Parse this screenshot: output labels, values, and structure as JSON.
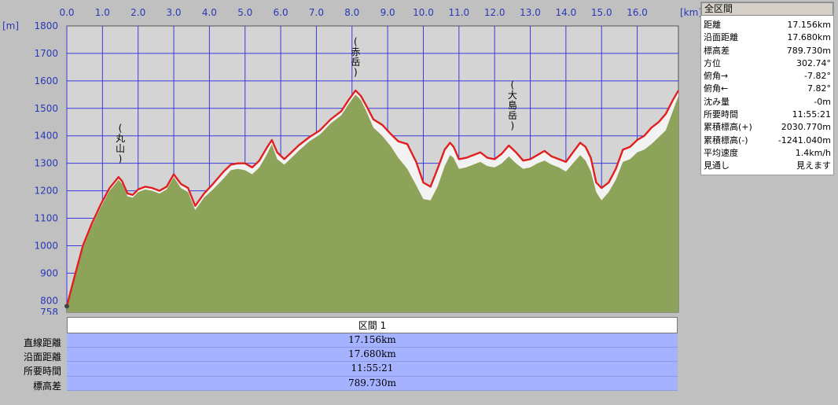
{
  "chart_data": {
    "type": "area",
    "xlabel": "[km]",
    "ylabel": "[m]",
    "xlim": [
      0,
      17.156
    ],
    "ylim": [
      758,
      1800
    ],
    "x_ticks": [
      "0.0",
      "1.0",
      "2.0",
      "3.0",
      "4.0",
      "5.0",
      "6.0",
      "7.0",
      "8.0",
      "9.0",
      "10.0",
      "11.0",
      "12.0",
      "13.0",
      "14.0",
      "15.0",
      "16.0"
    ],
    "y_ticks": [
      "758",
      "800",
      "900",
      "1000",
      "1100",
      "1200",
      "1300",
      "1400",
      "1500",
      "1600",
      "1700",
      "1800"
    ],
    "grid": true,
    "annotations": [
      {
        "label": "(丸山)",
        "x": 1.5,
        "y": 1250
      },
      {
        "label": "(赤岳)",
        "x": 8.1,
        "y": 1565
      },
      {
        "label": "(大島岳)",
        "x": 12.5,
        "y": 1370
      }
    ],
    "series": [
      {
        "name": "",
        "color": "#e02020",
        "x": [
          0,
          0.2,
          0.45,
          0.7,
          0.95,
          1.2,
          1.45,
          1.55,
          1.7,
          1.85,
          2.0,
          2.2,
          2.4,
          2.6,
          2.8,
          3.0,
          3.2,
          3.4,
          3.6,
          3.85,
          4.1,
          4.4,
          4.6,
          4.8,
          5.0,
          5.2,
          5.4,
          5.6,
          5.75,
          5.9,
          6.1,
          6.3,
          6.5,
          6.8,
          7.1,
          7.4,
          7.7,
          7.9,
          8.1,
          8.25,
          8.4,
          8.6,
          8.85,
          9.1,
          9.3,
          9.55,
          9.8,
          10.0,
          10.2,
          10.4,
          10.6,
          10.75,
          10.85,
          11.0,
          11.2,
          11.4,
          11.6,
          11.8,
          12.0,
          12.2,
          12.4,
          12.6,
          12.8,
          13.0,
          13.2,
          13.4,
          13.6,
          13.8,
          14.0,
          14.2,
          14.4,
          14.55,
          14.7,
          14.85,
          15.0,
          15.2,
          15.4,
          15.6,
          15.8,
          16.0,
          16.2,
          16.4,
          16.6,
          16.8,
          17.0,
          17.156
        ],
        "values": [
          780,
          880,
          1000,
          1080,
          1150,
          1210,
          1250,
          1235,
          1190,
          1185,
          1205,
          1215,
          1210,
          1200,
          1215,
          1260,
          1225,
          1210,
          1145,
          1190,
          1225,
          1270,
          1295,
          1300,
          1300,
          1285,
          1310,
          1355,
          1385,
          1340,
          1315,
          1340,
          1365,
          1395,
          1420,
          1460,
          1490,
          1530,
          1565,
          1545,
          1510,
          1460,
          1440,
          1405,
          1380,
          1370,
          1305,
          1230,
          1215,
          1280,
          1350,
          1375,
          1360,
          1315,
          1320,
          1330,
          1340,
          1320,
          1315,
          1335,
          1365,
          1340,
          1310,
          1315,
          1330,
          1345,
          1325,
          1315,
          1305,
          1340,
          1375,
          1360,
          1320,
          1230,
          1210,
          1230,
          1280,
          1350,
          1360,
          1385,
          1400,
          1430,
          1450,
          1480,
          1530,
          1565
        ]
      },
      {
        "name": "",
        "color": "#8ea35a",
        "x": [
          0,
          0.2,
          0.45,
          0.7,
          0.95,
          1.2,
          1.45,
          1.55,
          1.7,
          1.85,
          2.0,
          2.2,
          2.4,
          2.6,
          2.8,
          3.0,
          3.2,
          3.4,
          3.6,
          3.85,
          4.1,
          4.4,
          4.6,
          4.8,
          5.0,
          5.2,
          5.4,
          5.6,
          5.75,
          5.9,
          6.1,
          6.3,
          6.5,
          6.8,
          7.1,
          7.4,
          7.7,
          7.9,
          8.1,
          8.25,
          8.4,
          8.6,
          8.85,
          9.1,
          9.3,
          9.55,
          9.8,
          10.0,
          10.2,
          10.4,
          10.6,
          10.75,
          10.85,
          11.0,
          11.2,
          11.4,
          11.6,
          11.8,
          12.0,
          12.2,
          12.4,
          12.6,
          12.8,
          13.0,
          13.2,
          13.4,
          13.6,
          13.8,
          14.0,
          14.2,
          14.4,
          14.55,
          14.7,
          14.85,
          15.0,
          15.2,
          15.4,
          15.6,
          15.8,
          16.0,
          16.2,
          16.4,
          16.6,
          16.8,
          17.0,
          17.156
        ],
        "values": [
          775,
          870,
          990,
          1070,
          1140,
          1200,
          1240,
          1225,
          1180,
          1175,
          1195,
          1205,
          1200,
          1190,
          1205,
          1250,
          1210,
          1195,
          1130,
          1175,
          1205,
          1245,
          1275,
          1280,
          1275,
          1260,
          1285,
          1330,
          1370,
          1315,
          1295,
          1320,
          1345,
          1380,
          1405,
          1445,
          1475,
          1515,
          1550,
          1530,
          1490,
          1430,
          1400,
          1360,
          1320,
          1280,
          1220,
          1170,
          1165,
          1215,
          1290,
          1330,
          1320,
          1280,
          1285,
          1295,
          1305,
          1290,
          1285,
          1300,
          1325,
          1300,
          1280,
          1285,
          1300,
          1310,
          1295,
          1285,
          1270,
          1300,
          1330,
          1310,
          1270,
          1195,
          1165,
          1195,
          1240,
          1305,
          1315,
          1340,
          1350,
          1370,
          1395,
          1420,
          1490,
          1545
        ]
      }
    ]
  },
  "summary": {
    "title": "全区間",
    "rows": [
      {
        "label": "距離",
        "value": "17.156km"
      },
      {
        "label": "沿面距離",
        "value": "17.680km"
      },
      {
        "label": "標高差",
        "value": "789.730m"
      },
      {
        "label": "方位",
        "value": "302.74°"
      },
      {
        "label": "俯角→",
        "value": "-7.82°"
      },
      {
        "label": "俯角←",
        "value": "7.82°"
      },
      {
        "label": "沈み量",
        "value": "-0m"
      },
      {
        "label": "所要時間",
        "value": "11:55:21"
      },
      {
        "label": "累積標高(+)",
        "value": "2030.770m"
      },
      {
        "label": "累積標高(-)",
        "value": "-1241.040m"
      },
      {
        "label": "平均速度",
        "value": "1.4km/h"
      },
      {
        "label": "見通し",
        "value": "見えます"
      }
    ]
  },
  "segment": {
    "title": "区間 1",
    "labels": [
      "直線距離",
      "沿面距離",
      "所要時間",
      "標高差"
    ],
    "values": [
      "17.156km",
      "17.680km",
      "11:55:21",
      "789.730m"
    ]
  }
}
